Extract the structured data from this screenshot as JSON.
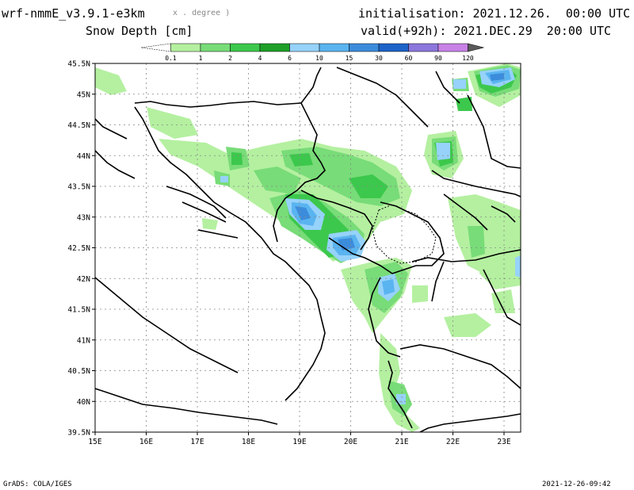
{
  "header": {
    "model": "wrf-nmmE_v3.9.1-e3km",
    "units_note": "x . degree )",
    "field": "Snow Depth [cm]",
    "init": "initialisation: 2021.12.26.  00:00 UTC",
    "valid": "valid(+92h): 2021.DEC.29  20:00 UTC"
  },
  "legend": {
    "levels": [
      "0.1",
      "1",
      "2",
      "4",
      "6",
      "10",
      "15",
      "30",
      "60",
      "90",
      "120"
    ],
    "colors": [
      "#ffffff",
      "#b4f0a0",
      "#78dc78",
      "#3cc84c",
      "#1ea028",
      "#96d2fa",
      "#5ab4f0",
      "#3c8cdc",
      "#1e64c8",
      "#8c78dc",
      "#c882e6",
      "#5a5a5a"
    ]
  },
  "map": {
    "lat_labels": [
      "45.5N",
      "45N",
      "44.5N",
      "44N",
      "43.5N",
      "43N",
      "42.5N",
      "42N",
      "41.5N",
      "41N",
      "40.5N",
      "40N",
      "39.5N"
    ],
    "lon_labels": [
      "15E",
      "16E",
      "17E",
      "18E",
      "19E",
      "20E",
      "21E",
      "22E",
      "23E"
    ]
  },
  "footer": {
    "left": "GrADS: COLA/IGES",
    "right": "2021-12-26-09:42"
  }
}
